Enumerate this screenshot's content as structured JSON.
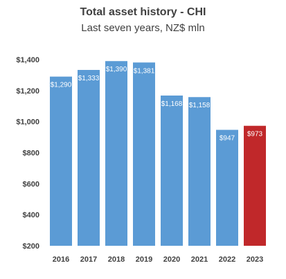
{
  "chart_data": {
    "type": "bar",
    "title": "Total asset history - CHI",
    "subtitle": "Last seven years, NZ$ mln",
    "categories": [
      "2016",
      "2017",
      "2018",
      "2019",
      "2020",
      "2021",
      "2022",
      "2023"
    ],
    "values": [
      1290,
      1333,
      1390,
      1381,
      1168,
      1158,
      947,
      973
    ],
    "data_labels": [
      "$1,290",
      "$1,333",
      "$1,390",
      "$1,381",
      "$1,168",
      "$1,158",
      "$947",
      "$973"
    ],
    "ylim": [
      200,
      1400
    ],
    "yticks": [
      200,
      400,
      600,
      800,
      1000,
      1200,
      1400
    ],
    "ytick_labels": [
      "$200",
      "$400",
      "$600",
      "$800",
      "$1,000",
      "$1,200",
      "$1,400"
    ],
    "grid": false,
    "colors": {
      "bar": "#5b9bd5",
      "highlight": "#c0282a",
      "label": "#ffffff",
      "axis_text": "#404040"
    },
    "highlight_category": "2023"
  }
}
